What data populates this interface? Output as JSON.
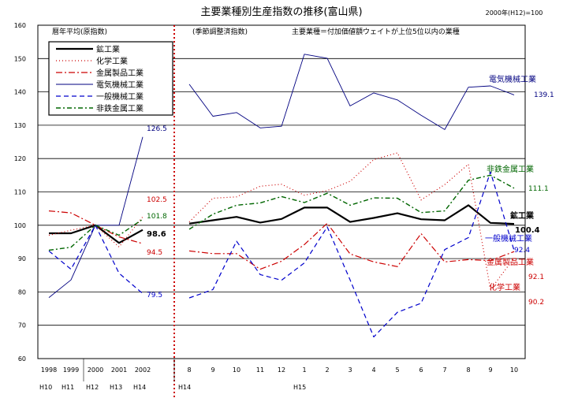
{
  "header": {
    "title": "主要業種別生産指数の推移(富山県)",
    "base": "2000年(H12)=100"
  },
  "notes": {
    "annual": "暦年平均(原指数)",
    "monthly": "(季節調整済指数)",
    "industry_def": "主要業種＝付加価値額ウェイトが上位5位以内の業種"
  },
  "chart_data": {
    "type": "line",
    "ylim": [
      60,
      160
    ],
    "y_ticks": [
      "60",
      "70",
      "80",
      "90",
      "100",
      "110",
      "120",
      "130",
      "140",
      "150",
      "160"
    ],
    "grid": "horizontal",
    "legend_position": "top-left",
    "annual_categories": [
      "1998",
      "1999",
      "2000",
      "2001",
      "2002"
    ],
    "annual_era": [
      "H10",
      "H11",
      "H12",
      "H13",
      "H14"
    ],
    "monthly_categories": [
      "8",
      "9",
      "10",
      "11",
      "12",
      "1",
      "2",
      "3",
      "4",
      "5",
      "6",
      "7",
      "8",
      "9",
      "10"
    ],
    "monthly_era": [
      {
        "label": "H14",
        "index": 0
      },
      {
        "label": "H15",
        "index": 5
      }
    ],
    "series": [
      {
        "name": "鉱工業",
        "color": "#000000",
        "annual": [
          97.6,
          97.6,
          100,
          94.7,
          98.6
        ],
        "monthly": [
          100.5,
          101.5,
          102.5,
          100.8,
          101.9,
          105.3,
          105.3,
          101.0,
          102.2,
          103.6,
          101.8,
          101.5,
          106.0,
          100.7,
          100.4
        ]
      },
      {
        "name": "化学工業",
        "color": "#cc0000",
        "annual": [
          97.0,
          98.5,
          100,
          93.5,
          102.5
        ],
        "monthly": [
          101.0,
          108.1,
          108.5,
          111.7,
          112.3,
          109.0,
          110.4,
          113.2,
          119.7,
          121.7,
          107.6,
          112.2,
          118.3,
          80.7,
          90.2
        ]
      },
      {
        "name": "金属製品工業",
        "color": "#cc0000",
        "annual": [
          104.3,
          103.7,
          100,
          96.5,
          94.5
        ],
        "monthly": [
          92.3,
          91.5,
          91.5,
          86.8,
          89.2,
          94.2,
          100.6,
          91.4,
          89.0,
          87.6,
          97.5,
          89.0,
          89.7,
          89.4,
          92.1
        ]
      },
      {
        "name": "電気機械工業",
        "color": "#000080",
        "annual": [
          78.3,
          83.6,
          100,
          100,
          126.5
        ],
        "monthly": [
          142.3,
          132.7,
          133.8,
          129.2,
          129.7,
          151.3,
          150.1,
          135.8,
          139.7,
          137.6,
          133.0,
          128.7,
          141.4,
          141.8,
          139.1
        ]
      },
      {
        "name": "一般機械工業",
        "color": "#0000cc",
        "annual": [
          92.3,
          86.8,
          100,
          85.6,
          79.5
        ],
        "monthly": [
          78.2,
          80.7,
          95.2,
          85.2,
          83.5,
          88.7,
          99.5,
          83.6,
          66.5,
          73.9,
          76.6,
          92.7,
          96.3,
          116.0,
          92.4
        ]
      },
      {
        "name": "非鉄金属工業",
        "color": "#006600",
        "annual": [
          92.5,
          93.4,
          100,
          97.0,
          101.8
        ],
        "monthly": [
          98.8,
          103.3,
          106.0,
          106.7,
          108.6,
          106.8,
          109.6,
          106.0,
          108.2,
          108.1,
          103.8,
          104.3,
          113.5,
          115.0,
          111.1
        ]
      }
    ],
    "annual_labels": [
      {
        "series": 3,
        "text": "126.5",
        "color": "#000080"
      },
      {
        "series": 1,
        "text": "102.5",
        "color": "#cc0000"
      },
      {
        "series": 5,
        "text": "101.8",
        "color": "#006600"
      },
      {
        "series": 0,
        "text": "98.6",
        "color": "#000000",
        "bold": true
      },
      {
        "series": 2,
        "text": "94.5",
        "color": "#cc0000"
      },
      {
        "series": 4,
        "text": "79.5",
        "color": "#0000cc"
      }
    ],
    "end_labels": [
      {
        "name": "電気機械工業",
        "value": "139.1",
        "color": "#000080"
      },
      {
        "name": "非鉄金属工業",
        "value": "111.1",
        "color": "#006600"
      },
      {
        "name": "鉱工業",
        "value": "100.4",
        "color": "#000000",
        "bold": true
      },
      {
        "name": "一般機械工業",
        "value": "92.4",
        "color": "#0000cc"
      },
      {
        "name": "金属製品工業",
        "value": "92.1",
        "color": "#cc0000"
      },
      {
        "name": "化学工業",
        "value": "90.2",
        "color": "#cc0000"
      }
    ]
  }
}
